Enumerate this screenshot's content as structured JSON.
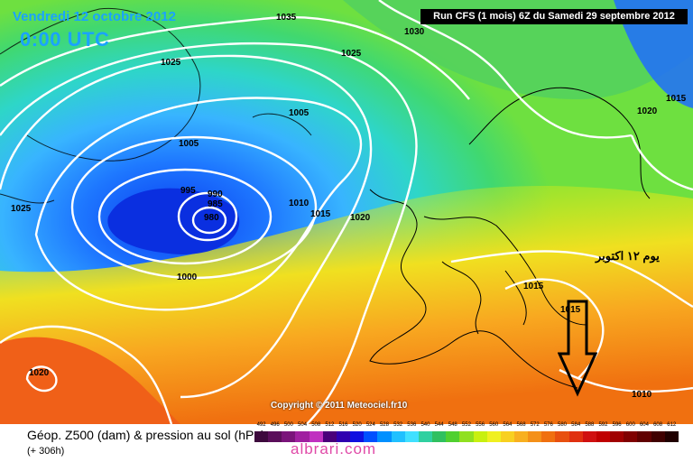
{
  "header": {
    "date": "Vendredi 12 octobre 2012",
    "time": "0:00 UTC",
    "run_info": "Run CFS (1 mois) 6Z du Samedi 29 septembre 2012"
  },
  "copyright": "Copyright © 2011 Meteociel.fr10",
  "annotation": {
    "arabic_text": "يوم ١٢ اكتوبر"
  },
  "legend": {
    "title": "Géop. Z500 (dam) & pression au sol (hPa)",
    "subtitle": "(+ 306h)",
    "ticks": [
      "492",
      "496",
      "500",
      "504",
      "508",
      "512",
      "516",
      "520",
      "524",
      "528",
      "532",
      "536",
      "540",
      "544",
      "548",
      "552",
      "556",
      "560",
      "564",
      "568",
      "572",
      "576",
      "580",
      "584",
      "588",
      "592",
      "596",
      "600",
      "604",
      "608",
      "612"
    ],
    "colors": [
      "#3d0a3d",
      "#5a0f5a",
      "#7a147a",
      "#a020a0",
      "#c030c0",
      "#4a007a",
      "#3000b0",
      "#1010e0",
      "#0050ff",
      "#0090ff",
      "#20c0ff",
      "#40e0ff",
      "#30d0a0",
      "#30c060",
      "#50d030",
      "#90e020",
      "#c8f010",
      "#f0f020",
      "#f8d020",
      "#f8b020",
      "#f49018",
      "#f07010",
      "#e85010",
      "#e03010",
      "#d01010",
      "#c00000",
      "#a00000",
      "#800000",
      "#600000",
      "#400000",
      "#200000"
    ]
  },
  "isobars": [
    "1035",
    "1030",
    "1025",
    "1025",
    "1005",
    "1005",
    "995",
    "990",
    "985",
    "980",
    "1000",
    "1010",
    "1015",
    "1020",
    "1015",
    "1020",
    "1015",
    "1025",
    "1010",
    "1020",
    "1015"
  ],
  "watermark": "albrari.com"
}
